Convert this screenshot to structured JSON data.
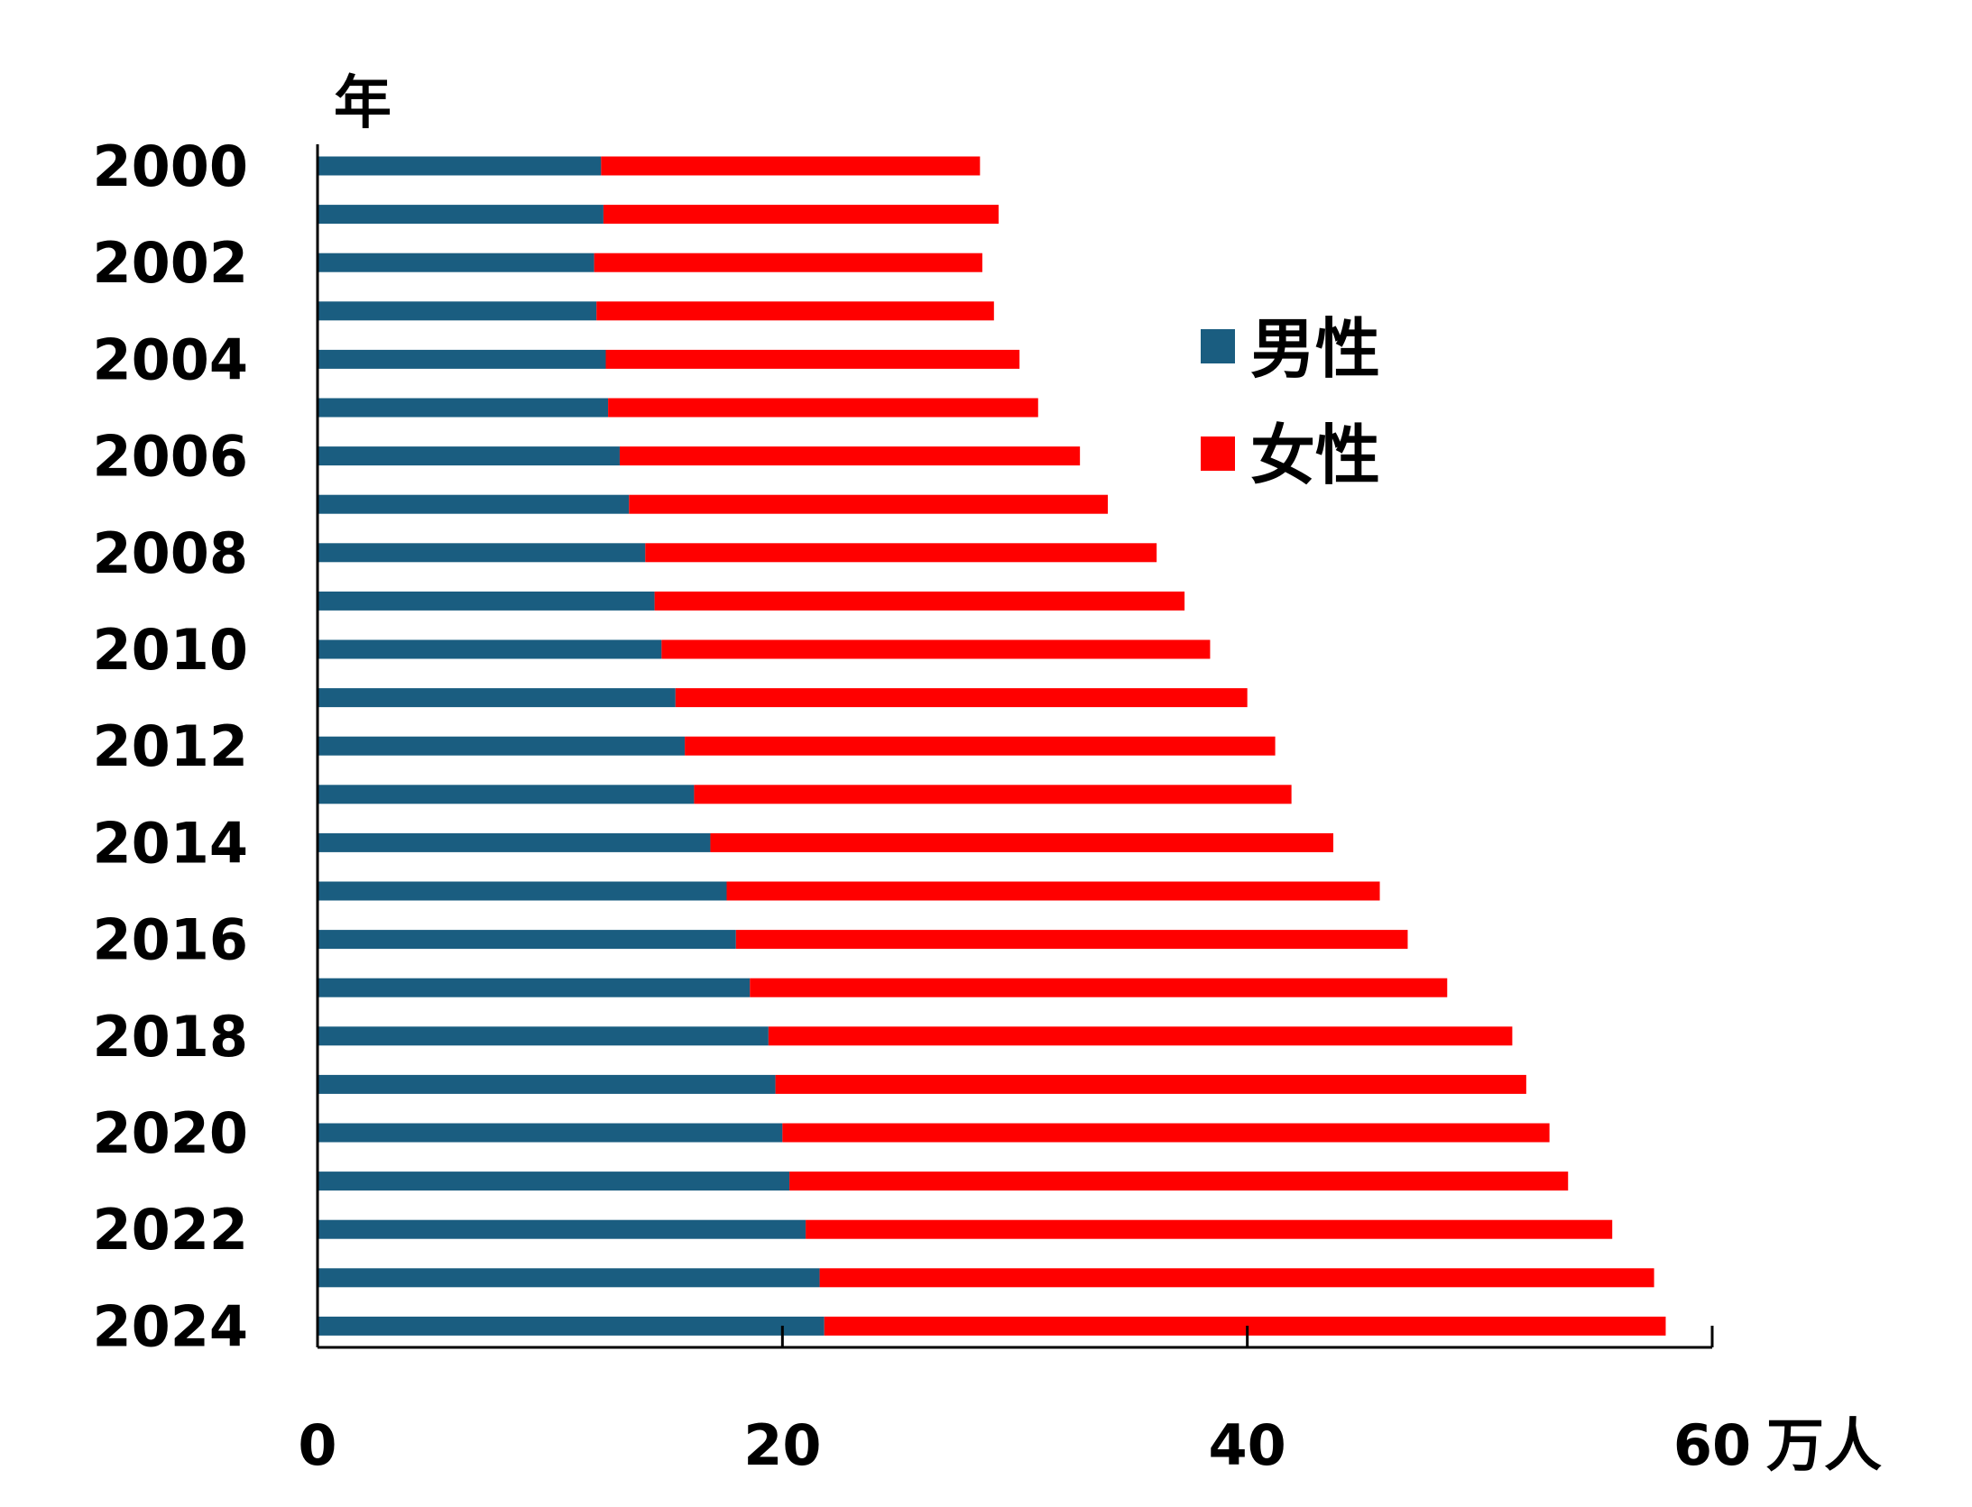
{
  "chart_data": {
    "type": "bar",
    "orientation": "horizontal",
    "stacked": true,
    "ylabel": "年",
    "xunit": "万人",
    "xlim": [
      0,
      60
    ],
    "xticks": [
      0,
      20,
      40,
      60
    ],
    "ytick_labels": [
      "2000",
      "2002",
      "2004",
      "2006",
      "2008",
      "2010",
      "2012",
      "2014",
      "2016",
      "2018",
      "2020",
      "2022",
      "2024"
    ],
    "categories": [
      "2000",
      "2001",
      "2002",
      "2003",
      "2004",
      "2005",
      "2006",
      "2007",
      "2008",
      "2009",
      "2010",
      "2011",
      "2012",
      "2013",
      "2014",
      "2015",
      "2016",
      "2017",
      "2018",
      "2019",
      "2020",
      "2021",
      "2022",
      "2023",
      "2024"
    ],
    "series": [
      {
        "name": "男性",
        "color": "#1a5d80",
        "values": [
          12.2,
          12.3,
          11.9,
          12.0,
          12.4,
          12.5,
          13.0,
          13.4,
          14.1,
          14.5,
          14.8,
          15.4,
          15.8,
          16.2,
          16.9,
          17.6,
          18.0,
          18.6,
          19.4,
          19.7,
          20.0,
          20.3,
          21.0,
          21.6,
          21.8
        ]
      },
      {
        "name": "女性",
        "color": "#ff0000",
        "values": [
          16.3,
          17.0,
          16.7,
          17.1,
          17.8,
          18.5,
          19.8,
          20.6,
          22.0,
          22.8,
          23.6,
          24.6,
          25.4,
          25.7,
          26.8,
          28.1,
          28.9,
          30.0,
          32.0,
          32.3,
          33.0,
          33.5,
          34.7,
          35.9,
          36.2
        ]
      }
    ],
    "legend_position": "upper-right",
    "grid": false
  }
}
